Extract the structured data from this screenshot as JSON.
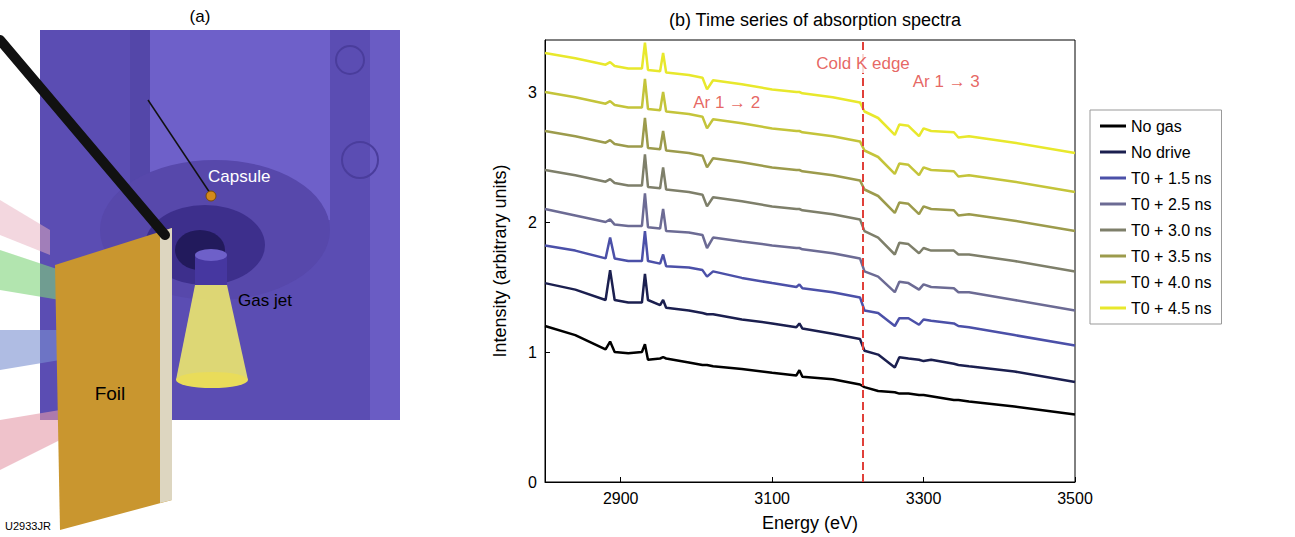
{
  "figure_code": "U2933JR",
  "panel_a": {
    "label": "(a)",
    "labels": [
      "Capsule",
      "Foil",
      "Gas jet"
    ]
  },
  "chart_data": {
    "type": "line",
    "title": "(b) Time series of absorption spectra",
    "x_label": "Energy (eV)",
    "y_label": "Intensity (arbitrary units)",
    "xlim": [
      2800,
      3500
    ],
    "xticks": [
      2900,
      3100,
      3300,
      3500
    ],
    "ylim": [
      0,
      3.4
    ],
    "yticks": [
      0,
      1,
      2,
      3
    ],
    "grid": false,
    "legend": "right",
    "x": [
      2800,
      2840,
      2880,
      2886,
      2892,
      2910,
      2928,
      2932,
      2936,
      2952,
      2956,
      2960,
      2990,
      3008,
      3014,
      3022,
      3060,
      3100,
      3132,
      3136,
      3140,
      3180,
      3216,
      3222,
      3240,
      3262,
      3268,
      3280,
      3294,
      3300,
      3310,
      3340,
      3346,
      3360,
      3420,
      3500
    ],
    "series": [
      {
        "name": "No gas",
        "color": "#000000",
        "values": [
          1.2,
          1.13,
          1.02,
          1.08,
          1.0,
          0.99,
          1.0,
          1.06,
          0.94,
          0.95,
          0.96,
          0.95,
          0.92,
          0.9,
          0.9,
          0.89,
          0.87,
          0.84,
          0.82,
          0.86,
          0.81,
          0.79,
          0.75,
          0.73,
          0.7,
          0.69,
          0.68,
          0.68,
          0.67,
          0.67,
          0.66,
          0.63,
          0.63,
          0.62,
          0.58,
          0.52
        ]
      },
      {
        "name": "No drive",
        "color": "#1b1f4f",
        "values": [
          1.53,
          1.48,
          1.4,
          1.63,
          1.4,
          1.38,
          1.38,
          1.6,
          1.4,
          1.36,
          1.4,
          1.34,
          1.32,
          1.3,
          1.29,
          1.29,
          1.25,
          1.22,
          1.19,
          1.22,
          1.18,
          1.14,
          1.1,
          1.01,
          0.98,
          0.88,
          0.96,
          0.95,
          0.94,
          0.93,
          0.94,
          0.91,
          0.9,
          0.89,
          0.85,
          0.77
        ]
      },
      {
        "name": "T0 + 1.5 ns",
        "color": "#4b50a8",
        "values": [
          1.82,
          1.78,
          1.72,
          1.88,
          1.72,
          1.7,
          1.7,
          1.93,
          1.7,
          1.68,
          1.75,
          1.66,
          1.65,
          1.63,
          1.58,
          1.62,
          1.57,
          1.53,
          1.5,
          1.52,
          1.49,
          1.46,
          1.42,
          1.32,
          1.3,
          1.2,
          1.26,
          1.26,
          1.21,
          1.25,
          1.24,
          1.22,
          1.2,
          1.19,
          1.13,
          1.05
        ]
      },
      {
        "name": "T0 + 2.5 ns",
        "color": "#6c6b94",
        "values": [
          2.1,
          2.05,
          2.0,
          2.02,
          1.98,
          1.97,
          1.97,
          2.22,
          1.96,
          1.95,
          2.1,
          1.93,
          1.92,
          1.9,
          1.8,
          1.88,
          1.85,
          1.82,
          1.8,
          1.8,
          1.79,
          1.76,
          1.72,
          1.62,
          1.58,
          1.46,
          1.54,
          1.53,
          1.48,
          1.52,
          1.5,
          1.49,
          1.46,
          1.46,
          1.4,
          1.32
        ]
      },
      {
        "name": "T0 + 3.0 ns",
        "color": "#7e7f6a",
        "values": [
          2.4,
          2.36,
          2.31,
          2.33,
          2.3,
          2.28,
          2.28,
          2.52,
          2.27,
          2.26,
          2.42,
          2.25,
          2.23,
          2.21,
          2.12,
          2.19,
          2.16,
          2.12,
          2.1,
          2.1,
          2.09,
          2.06,
          2.02,
          1.93,
          1.88,
          1.75,
          1.84,
          1.83,
          1.76,
          1.8,
          1.78,
          1.78,
          1.75,
          1.75,
          1.7,
          1.62
        ]
      },
      {
        "name": "T0 + 3.5 ns",
        "color": "#9c9b4c",
        "values": [
          2.7,
          2.66,
          2.61,
          2.63,
          2.6,
          2.58,
          2.58,
          2.8,
          2.57,
          2.56,
          2.7,
          2.55,
          2.53,
          2.51,
          2.42,
          2.49,
          2.46,
          2.42,
          2.4,
          2.4,
          2.39,
          2.36,
          2.32,
          2.25,
          2.2,
          2.07,
          2.15,
          2.14,
          2.06,
          2.12,
          2.1,
          2.09,
          2.05,
          2.06,
          2.01,
          1.93
        ]
      },
      {
        "name": "T0 + 4.0 ns",
        "color": "#c4c43a",
        "values": [
          3.0,
          2.96,
          2.91,
          2.93,
          2.9,
          2.88,
          2.88,
          3.1,
          2.87,
          2.86,
          3.0,
          2.85,
          2.83,
          2.81,
          2.72,
          2.79,
          2.76,
          2.72,
          2.7,
          2.7,
          2.69,
          2.66,
          2.62,
          2.55,
          2.5,
          2.37,
          2.45,
          2.44,
          2.36,
          2.42,
          2.4,
          2.39,
          2.35,
          2.36,
          2.31,
          2.23
        ]
      },
      {
        "name": "T0 + 4.5 ns",
        "color": "#e8e82c",
        "values": [
          3.3,
          3.26,
          3.21,
          3.23,
          3.2,
          3.18,
          3.18,
          3.38,
          3.17,
          3.16,
          3.3,
          3.15,
          3.13,
          3.11,
          3.02,
          3.09,
          3.06,
          3.02,
          3.0,
          3.0,
          2.99,
          2.96,
          2.92,
          2.85,
          2.8,
          2.67,
          2.75,
          2.74,
          2.66,
          2.72,
          2.7,
          2.69,
          2.65,
          2.66,
          2.61,
          2.53
        ]
      }
    ],
    "vlines": [
      {
        "x": 3220,
        "color": "#e0403a",
        "line_style": "dashed"
      }
    ],
    "annotations": [
      {
        "text": "Ar 1 → 2",
        "x": 3040,
        "y": 2.92,
        "color": "#e0403a"
      },
      {
        "text": "Cold K edge",
        "x": 3220,
        "y": 3.22,
        "color": "#e0403a"
      },
      {
        "text": "Ar 1 → 3",
        "x": 3330,
        "y": 3.08,
        "color": "#e0403a"
      }
    ]
  }
}
